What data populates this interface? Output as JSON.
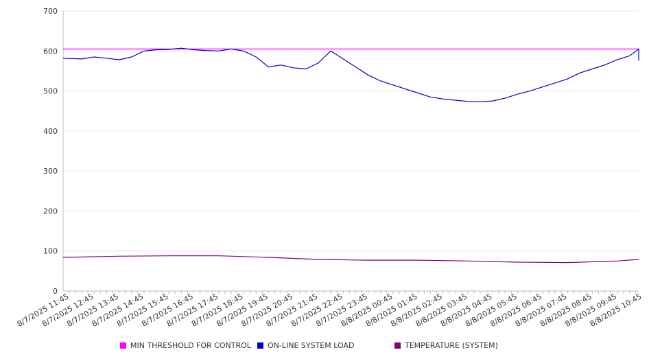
{
  "chart_data": {
    "type": "line",
    "ylim": [
      0,
      700
    ],
    "y_ticks": [
      "0",
      "100",
      "200",
      "300",
      "400",
      "500",
      "600",
      "700"
    ],
    "x_tick_labels": [
      "8/7/2025 11:45",
      "8/7/2025 12:45",
      "8/7/2025 13:45",
      "8/7/2025 14:45",
      "8/7/2025 15:45",
      "8/7/2025 16:45",
      "8/7/2025 17:45",
      "8/7/2025 18:45",
      "8/7/2025 19:45",
      "8/7/2025 20:45",
      "8/7/2025 21:45",
      "8/7/2025 22:45",
      "8/7/2025 23:45",
      "8/8/2025 00:45",
      "8/8/2025 01:45",
      "8/8/2025 02:45",
      "8/8/2025 03:45",
      "8/8/2025 04:45",
      "8/8/2025 05:45",
      "8/8/2025 06:45",
      "8/8/2025 07:45",
      "8/8/2025 08:45",
      "8/8/2025 09:45",
      "8/8/2025 10:45"
    ],
    "grid": "horizontal",
    "legend_position": "bottom",
    "series": [
      {
        "name": "MIN THRESHOLD FOR CONTROL",
        "color": "#ff00ff",
        "x": [
          "8/7/2025 11:45",
          "8/8/2025 11:45"
        ],
        "values": [
          605,
          605
        ]
      },
      {
        "name": "ON-LINE SYSTEM LOAD",
        "color": "#0000cc",
        "x": [
          "8/7/2025 11:45",
          "8/7/2025 12:15",
          "8/7/2025 12:45",
          "8/7/2025 13:15",
          "8/7/2025 13:45",
          "8/7/2025 14:15",
          "8/7/2025 14:45",
          "8/7/2025 15:15",
          "8/7/2025 15:45",
          "8/7/2025 16:15",
          "8/7/2025 16:45",
          "8/7/2025 17:15",
          "8/7/2025 17:45",
          "8/7/2025 18:15",
          "8/7/2025 18:45",
          "8/7/2025 19:15",
          "8/7/2025 19:45",
          "8/7/2025 20:15",
          "8/7/2025 20:45",
          "8/7/2025 21:15",
          "8/7/2025 21:45",
          "8/7/2025 22:15",
          "8/7/2025 22:45",
          "8/7/2025 23:15",
          "8/7/2025 23:45",
          "8/8/2025 00:15",
          "8/8/2025 00:45",
          "8/8/2025 01:15",
          "8/8/2025 01:45",
          "8/8/2025 02:15",
          "8/8/2025 02:45",
          "8/8/2025 03:15",
          "8/8/2025 03:45",
          "8/8/2025 04:15",
          "8/8/2025 04:45",
          "8/8/2025 05:15",
          "8/8/2025 05:45",
          "8/8/2025 06:15",
          "8/8/2025 06:45",
          "8/8/2025 07:15",
          "8/8/2025 07:45",
          "8/8/2025 08:15",
          "8/8/2025 08:45",
          "8/8/2025 09:15",
          "8/8/2025 09:45",
          "8/8/2025 10:15",
          "8/8/2025 10:45",
          "8/8/2025 11:15",
          "8/8/2025 11:45"
        ],
        "values": [
          582,
          580,
          585,
          582,
          578,
          585,
          600,
          603,
          604,
          607,
          603,
          601,
          600,
          605,
          600,
          585,
          560,
          565,
          558,
          555,
          570,
          600,
          580,
          560,
          540,
          525,
          515,
          505,
          495,
          485,
          480,
          477,
          474,
          473,
          475,
          482,
          492,
          500,
          510,
          520,
          530,
          545,
          555,
          565,
          578,
          588,
          605,
          580,
          576
        ]
      },
      {
        "name": "TEMPERATURE (SYSTEM)",
        "color": "#800080",
        "x": [
          "8/7/2025 11:45",
          "8/7/2025 13:45",
          "8/7/2025 15:45",
          "8/7/2025 17:45",
          "8/7/2025 19:45",
          "8/7/2025 21:45",
          "8/7/2025 23:45",
          "8/8/2025 01:45",
          "8/8/2025 03:45",
          "8/8/2025 05:45",
          "8/8/2025 07:45",
          "8/8/2025 09:45",
          "8/8/2025 11:45"
        ],
        "values": [
          84,
          87,
          88,
          88,
          84,
          79,
          77,
          77,
          75,
          72,
          71,
          75,
          79
        ]
      }
    ]
  }
}
